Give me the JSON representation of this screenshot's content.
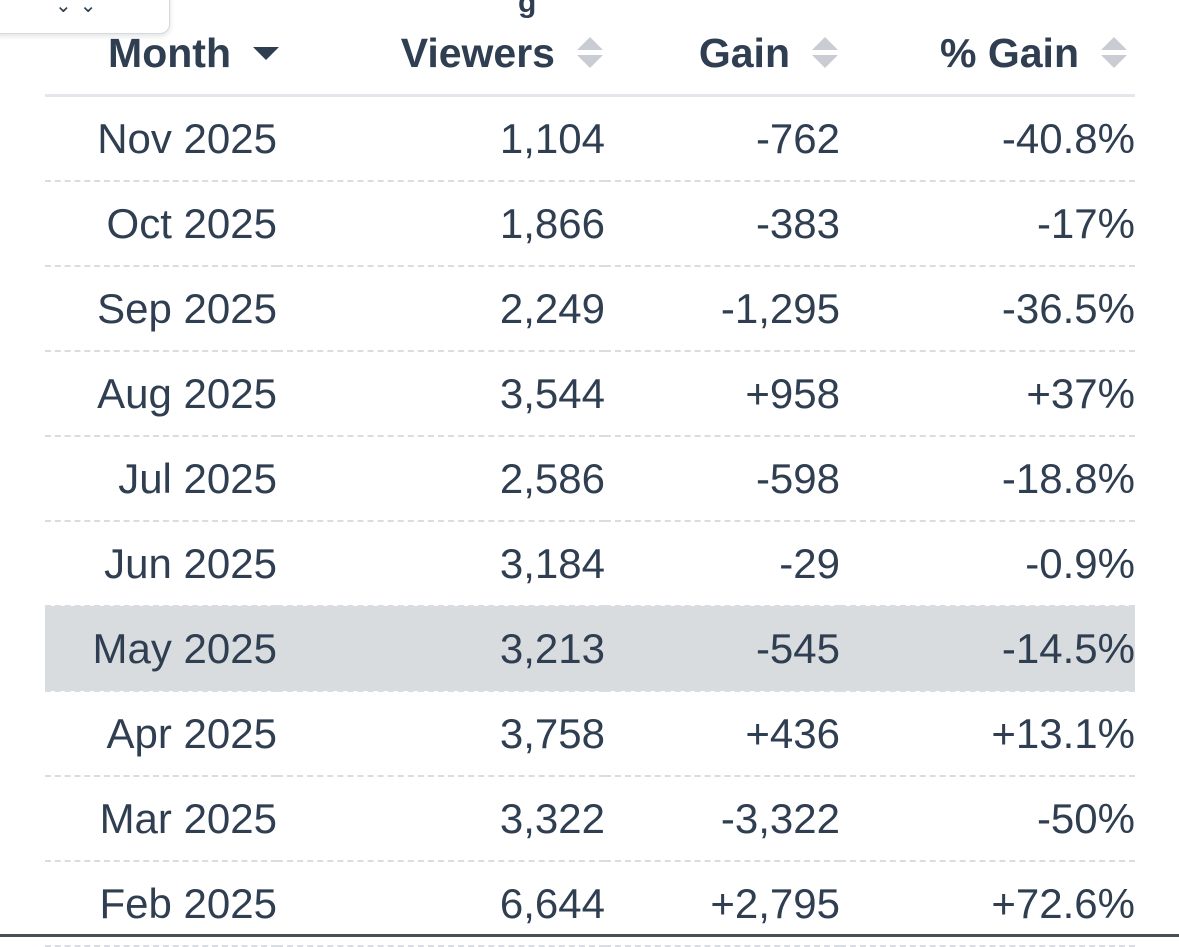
{
  "popup": {
    "arrows": "⌄⌄"
  },
  "header_clip": "g",
  "table": {
    "headers": {
      "month": "Month",
      "viewers": "Viewers",
      "gain": "Gain",
      "pct_gain": "% Gain"
    },
    "highlight_row": 6,
    "rows": [
      {
        "month": "Nov 2025",
        "viewers": "1,104",
        "gain": "-762",
        "pct": "-40.8%",
        "trend": "neg"
      },
      {
        "month": "Oct 2025",
        "viewers": "1,866",
        "gain": "-383",
        "pct": "-17%",
        "trend": "neg"
      },
      {
        "month": "Sep 2025",
        "viewers": "2,249",
        "gain": "-1,295",
        "pct": "-36.5%",
        "trend": "neg"
      },
      {
        "month": "Aug 2025",
        "viewers": "3,544",
        "gain": "+958",
        "pct": "+37%",
        "trend": "pos"
      },
      {
        "month": "Jul 2025",
        "viewers": "2,586",
        "gain": "-598",
        "pct": "-18.8%",
        "trend": "neg"
      },
      {
        "month": "Jun 2025",
        "viewers": "3,184",
        "gain": "-29",
        "pct": "-0.9%",
        "trend": "neg"
      },
      {
        "month": "May 2025",
        "viewers": "3,213",
        "gain": "-545",
        "pct": "-14.5%",
        "trend": "neg"
      },
      {
        "month": "Apr 2025",
        "viewers": "3,758",
        "gain": "+436",
        "pct": "+13.1%",
        "trend": "pos"
      },
      {
        "month": "Mar 2025",
        "viewers": "3,322",
        "gain": "-3,322",
        "pct": "-50%",
        "trend": "neg"
      },
      {
        "month": "Feb 2025",
        "viewers": "6,644",
        "gain": "+2,795",
        "pct": "+72.6%",
        "trend": "pos"
      }
    ]
  },
  "colors": {
    "text": "#2f3e51",
    "negative": "#e3141c",
    "positive": "#1f8a1f",
    "highlight": "#d8dcdf"
  }
}
